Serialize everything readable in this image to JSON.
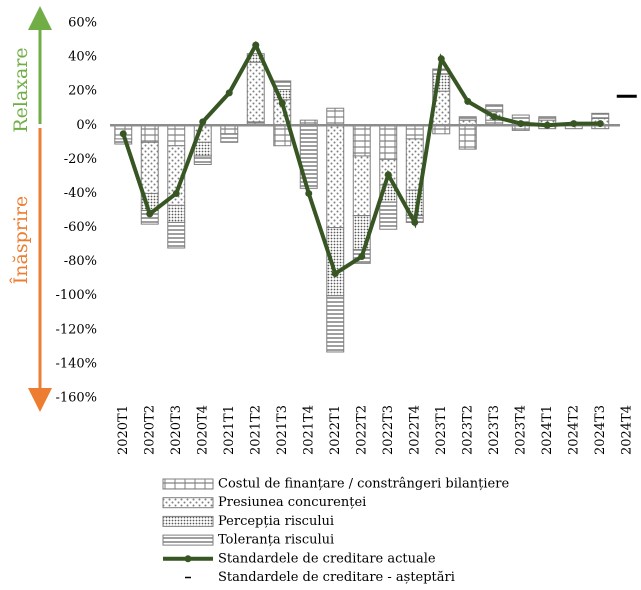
{
  "chart_data": {
    "type": "bar",
    "annotations": {
      "up": "Relaxare",
      "down": "Înăsprire"
    },
    "categories": [
      "2020T1",
      "2020T2",
      "2020T3",
      "2020T4",
      "2021T1",
      "2021T2",
      "2021T3",
      "2021T4",
      "2022T1",
      "2022T2",
      "2022T3",
      "2022T4",
      "2023T1",
      "2023T2",
      "2023T3",
      "2023T4",
      "2024T1",
      "2024T2",
      "2024T3",
      "2024T4"
    ],
    "ylim": [
      -160,
      60
    ],
    "yticks": [
      {
        "value": -160,
        "label": "-160%"
      },
      {
        "value": -140,
        "label": "-140%"
      },
      {
        "value": -120,
        "label": "-120%"
      },
      {
        "value": -100,
        "label": "-100%"
      },
      {
        "value": -80,
        "label": "-80%"
      },
      {
        "value": -60,
        "label": "-60%"
      },
      {
        "value": -40,
        "label": "-40%"
      },
      {
        "value": -20,
        "label": "-20%"
      },
      {
        "value": 0,
        "label": "0%"
      },
      {
        "value": 20,
        "label": "20%"
      },
      {
        "value": 40,
        "label": "40%"
      },
      {
        "value": 60,
        "label": "60%"
      }
    ],
    "series": [
      {
        "name": "Costul de finanțare / constrângeri bilanțiere",
        "color": "#7f7f7f",
        "values": [
          -8,
          -10,
          -12,
          0,
          -5,
          2,
          -12,
          3,
          10,
          -18,
          -20,
          -8,
          -5,
          -14,
          3,
          -3,
          -2,
          -2,
          -2,
          null
        ]
      },
      {
        "name": "Presiunea concurenței",
        "color": "#7f7f7f",
        "values": [
          0,
          -30,
          -35,
          -10,
          0,
          35,
          15,
          0,
          -60,
          -35,
          -15,
          -30,
          20,
          3,
          5,
          2,
          3,
          0,
          4,
          null
        ]
      },
      {
        "name": "Percepția riscului",
        "color": "#7f7f7f",
        "values": [
          0,
          -10,
          -10,
          -8,
          0,
          5,
          6,
          0,
          -40,
          -20,
          -10,
          -15,
          10,
          0,
          0,
          0,
          0,
          0,
          0,
          null
        ]
      },
      {
        "name": "Toleranța riscului",
        "color": "#7f7f7f",
        "values": [
          -3,
          -8,
          -15,
          -5,
          -5,
          0,
          5,
          -37,
          -33,
          -8,
          -16,
          -4,
          3,
          2,
          4,
          4,
          2,
          1,
          3,
          null
        ]
      },
      {
        "name": "Standardele de creditare actuale",
        "color": "#375623",
        "type": "line",
        "values": [
          -5,
          -52,
          -40,
          2,
          19,
          47,
          13,
          -40,
          -87,
          -77,
          -29,
          -57,
          39,
          14,
          5,
          1,
          0,
          1,
          1,
          null
        ]
      },
      {
        "name": "Standardele de creditare - așteptări",
        "color": "#000000",
        "type": "marker",
        "values": [
          null,
          null,
          null,
          null,
          null,
          null,
          null,
          null,
          null,
          null,
          null,
          null,
          null,
          null,
          null,
          null,
          null,
          null,
          null,
          17
        ]
      }
    ]
  }
}
